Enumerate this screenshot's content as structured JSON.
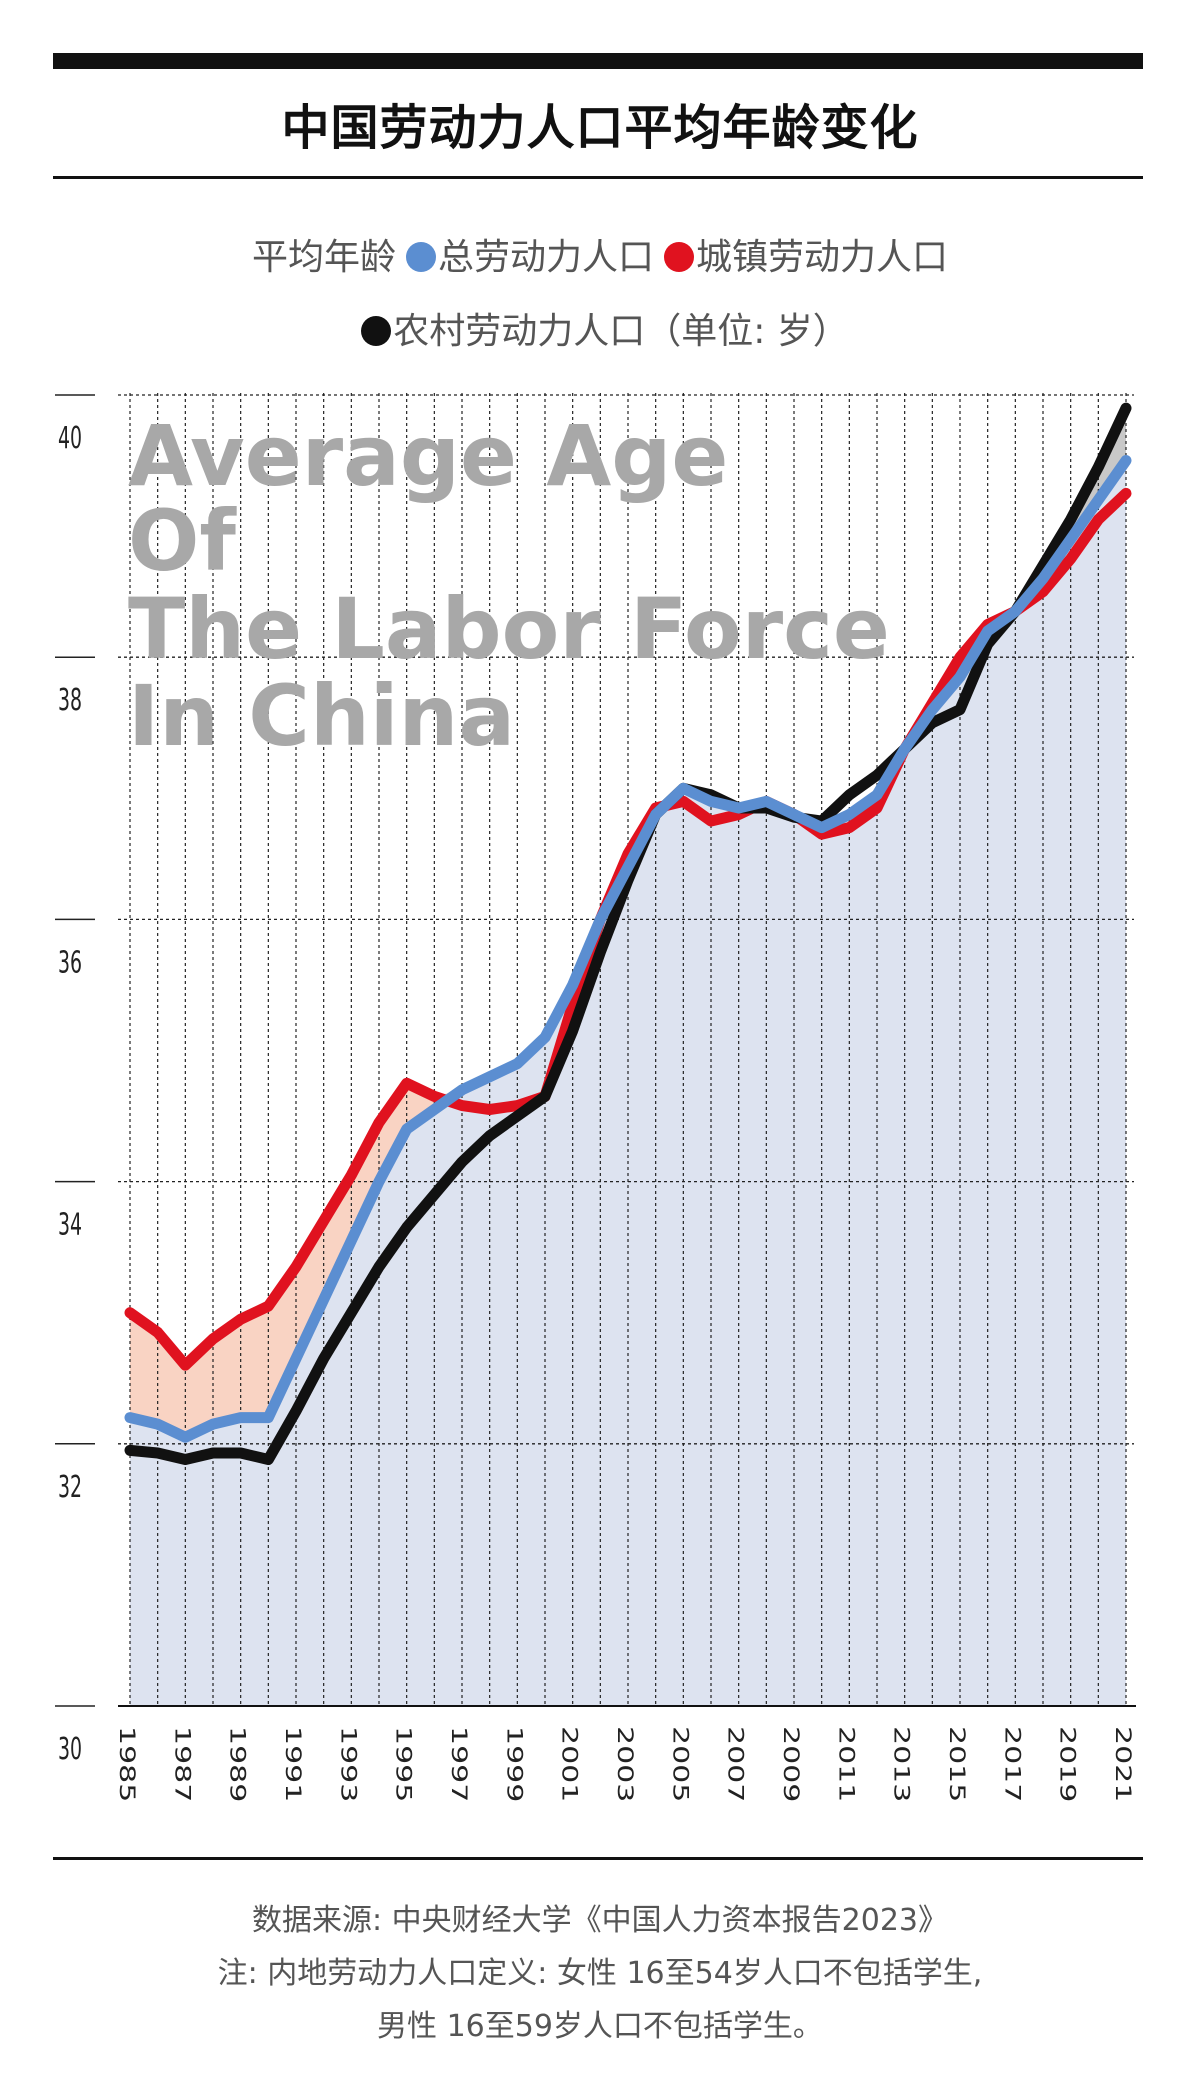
{
  "header": {
    "title": "中国劳动力人口平均年龄变化"
  },
  "legend": {
    "prefix": "平均年龄",
    "total_label": "总劳动力人口",
    "urban_label": "城镇劳动力人口",
    "rural_label": "农村劳动力人口",
    "unit": "（单位: 岁）"
  },
  "watermark": {
    "line1": "Average Age",
    "line2": "Of",
    "line3": "The Labor Force",
    "line4": "In China"
  },
  "footer": {
    "source": "数据来源: 中央财经大学《中国人力资本报告2023》",
    "note1": "注: 内地劳动力人口定义: 女性 16至54岁人口不包括学生,",
    "note2": "男性 16至59岁人口不包括学生。"
  },
  "colors": {
    "total": "#5b8ed1",
    "urban": "#e0121f",
    "rural": "#111111",
    "fill_total": "#dde3f0",
    "fill_urban": "#f9d3c3",
    "fill_rural": "#c8c8c8",
    "watermark": "#a8a8a8"
  },
  "chart_data": {
    "type": "line",
    "x": [
      1985,
      1986,
      1987,
      1988,
      1989,
      1990,
      1991,
      1992,
      1993,
      1994,
      1995,
      1996,
      1997,
      1998,
      1999,
      2000,
      2001,
      2002,
      2003,
      2004,
      2005,
      2006,
      2007,
      2008,
      2009,
      2010,
      2011,
      2012,
      2013,
      2014,
      2015,
      2016,
      2017,
      2018,
      2019,
      2020,
      2021
    ],
    "xticks": [
      "1985",
      "1987",
      "1989",
      "1991",
      "1993",
      "1995",
      "1997",
      "1999",
      "2001",
      "2003",
      "2005",
      "2007",
      "2009",
      "2011",
      "2013",
      "2015",
      "2017",
      "2019",
      "2021"
    ],
    "ylim": [
      30,
      40
    ],
    "yticks": [
      "30",
      "32",
      "34",
      "36",
      "38",
      "40"
    ],
    "series": [
      {
        "name": "总劳动力人口",
        "key": "total",
        "values": [
          32.2,
          32.15,
          32.05,
          32.15,
          32.2,
          32.2,
          32.65,
          33.1,
          33.55,
          34.0,
          34.4,
          34.55,
          34.7,
          34.8,
          34.9,
          35.1,
          35.5,
          36.0,
          36.4,
          36.8,
          37.0,
          36.9,
          36.85,
          36.9,
          36.8,
          36.7,
          36.8,
          36.95,
          37.3,
          37.6,
          37.85,
          38.2,
          38.35,
          38.6,
          38.9,
          39.2,
          39.5
        ]
      },
      {
        "name": "城镇劳动力人口",
        "key": "urban",
        "values": [
          33.0,
          32.85,
          32.6,
          32.8,
          32.95,
          33.05,
          33.35,
          33.7,
          34.05,
          34.45,
          34.75,
          34.65,
          34.58,
          34.55,
          34.58,
          34.65,
          35.35,
          36.0,
          36.5,
          36.85,
          36.9,
          36.75,
          36.8,
          36.9,
          36.8,
          36.65,
          36.7,
          36.85,
          37.3,
          37.65,
          38.0,
          38.25,
          38.35,
          38.5,
          38.75,
          39.05,
          39.25
        ]
      },
      {
        "name": "农村劳动力人口",
        "key": "rural",
        "values": [
          31.95,
          31.93,
          31.88,
          31.93,
          31.93,
          31.88,
          32.25,
          32.65,
          33.0,
          33.35,
          33.65,
          33.9,
          34.15,
          34.35,
          34.5,
          34.65,
          35.15,
          35.75,
          36.3,
          36.8,
          37.0,
          36.95,
          36.85,
          36.85,
          36.78,
          36.75,
          36.95,
          37.1,
          37.3,
          37.5,
          37.6,
          38.1,
          38.35,
          38.7,
          39.05,
          39.45,
          39.9
        ]
      }
    ]
  }
}
